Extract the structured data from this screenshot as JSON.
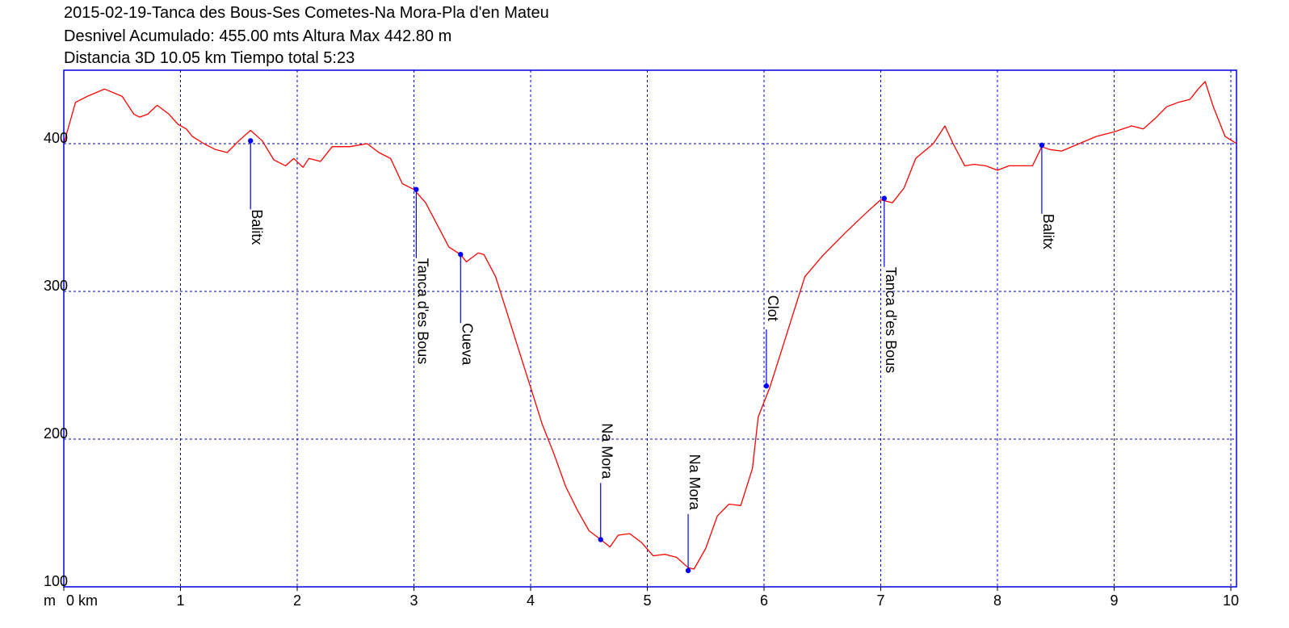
{
  "header": {
    "title": "2015-02-19-Tanca des Bous-Ses Cometes-Na Mora-Pla d'en Mateu",
    "line2": "Desnivel Acumulado: 455.00 mts  Altura Max 442.80 m",
    "line3": "Distancia 3D 10.05 km  Tiempo total 5:23"
  },
  "chart_data": {
    "type": "line",
    "xlabel": "km",
    "ylabel": "m",
    "xlim": [
      0,
      10.05
    ],
    "ylim": [
      100,
      450
    ],
    "x_ticks": [
      "0",
      "1",
      "2",
      "3",
      "4",
      "5",
      "6",
      "7",
      "8",
      "9",
      "10"
    ],
    "y_ticks": [
      "100",
      "200",
      "300",
      "400"
    ],
    "y_tick_values": [
      100,
      200,
      300,
      400
    ],
    "grid": true,
    "colors": {
      "line": "#ff0000",
      "axes": "#0000dd",
      "grid_x": "#0000dd",
      "grid_y": "#0000bb",
      "marker": "#0000ff"
    },
    "series": [
      {
        "x": [
          0,
          0.1,
          0.2,
          0.35,
          0.5,
          0.6,
          0.65,
          0.72,
          0.8,
          0.9,
          0.98,
          1.05,
          1.1,
          1.2,
          1.3,
          1.4,
          1.5,
          1.6,
          1.7,
          1.8,
          1.9,
          1.97,
          2.05,
          2.1,
          2.2,
          2.3,
          2.45,
          2.6,
          2.7,
          2.8,
          2.9,
          3.0,
          3.1,
          3.2,
          3.3,
          3.4,
          3.45,
          3.55,
          3.6,
          3.7,
          3.8,
          3.9,
          4.0,
          4.1,
          4.2,
          4.3,
          4.4,
          4.5,
          4.6,
          4.68,
          4.75,
          4.85,
          4.95,
          5.05,
          5.15,
          5.25,
          5.35,
          5.4,
          5.5,
          5.6,
          5.7,
          5.8,
          5.9,
          5.95,
          6.05,
          6.15,
          6.25,
          6.35,
          6.5,
          6.7,
          6.9,
          7.0,
          7.1,
          7.2,
          7.3,
          7.45,
          7.55,
          7.62,
          7.72,
          7.8,
          7.9,
          8.0,
          8.1,
          8.2,
          8.3,
          8.38,
          8.45,
          8.55,
          8.7,
          8.85,
          9.0,
          9.15,
          9.25,
          9.35,
          9.45,
          9.55,
          9.65,
          9.72,
          9.78,
          9.85,
          9.95,
          10.05
        ],
        "y": [
          400,
          428,
          432,
          437,
          432,
          420,
          418,
          420,
          426,
          420,
          413,
          410,
          405,
          400,
          396,
          394,
          402,
          409,
          402,
          389,
          385,
          390,
          384,
          390,
          388,
          398,
          398,
          400,
          394,
          390,
          373,
          369,
          360,
          345,
          330,
          325,
          320,
          326,
          325,
          310,
          285,
          260,
          235,
          210,
          190,
          168,
          152,
          138,
          132,
          127,
          135,
          136,
          130,
          121,
          122,
          120,
          113,
          112,
          126,
          148,
          156,
          155,
          180,
          215,
          235,
          260,
          285,
          310,
          324,
          340,
          355,
          362,
          360,
          370,
          390,
          400,
          412,
          400,
          385,
          386,
          385,
          382,
          385,
          385,
          385,
          398,
          396,
          395,
          400,
          405,
          408,
          412,
          410,
          417,
          425,
          428,
          430,
          437,
          442,
          425,
          405,
          400
        ]
      }
    ],
    "waypoints": [
      {
        "x": 1.6,
        "y": 402,
        "label": "Balitx"
      },
      {
        "x": 3.02,
        "y": 369,
        "label": "Tanca d'es Bous"
      },
      {
        "x": 3.4,
        "y": 325,
        "label": "Cueva"
      },
      {
        "x": 4.6,
        "y": 132,
        "label": "Na Mora"
      },
      {
        "x": 5.35,
        "y": 111,
        "label": "Na Mora"
      },
      {
        "x": 6.02,
        "y": 236,
        "label": "Clot"
      },
      {
        "x": 7.03,
        "y": 363,
        "label": "Tanca d'es Bous"
      },
      {
        "x": 8.38,
        "y": 399,
        "label": "Balitx"
      }
    ]
  }
}
